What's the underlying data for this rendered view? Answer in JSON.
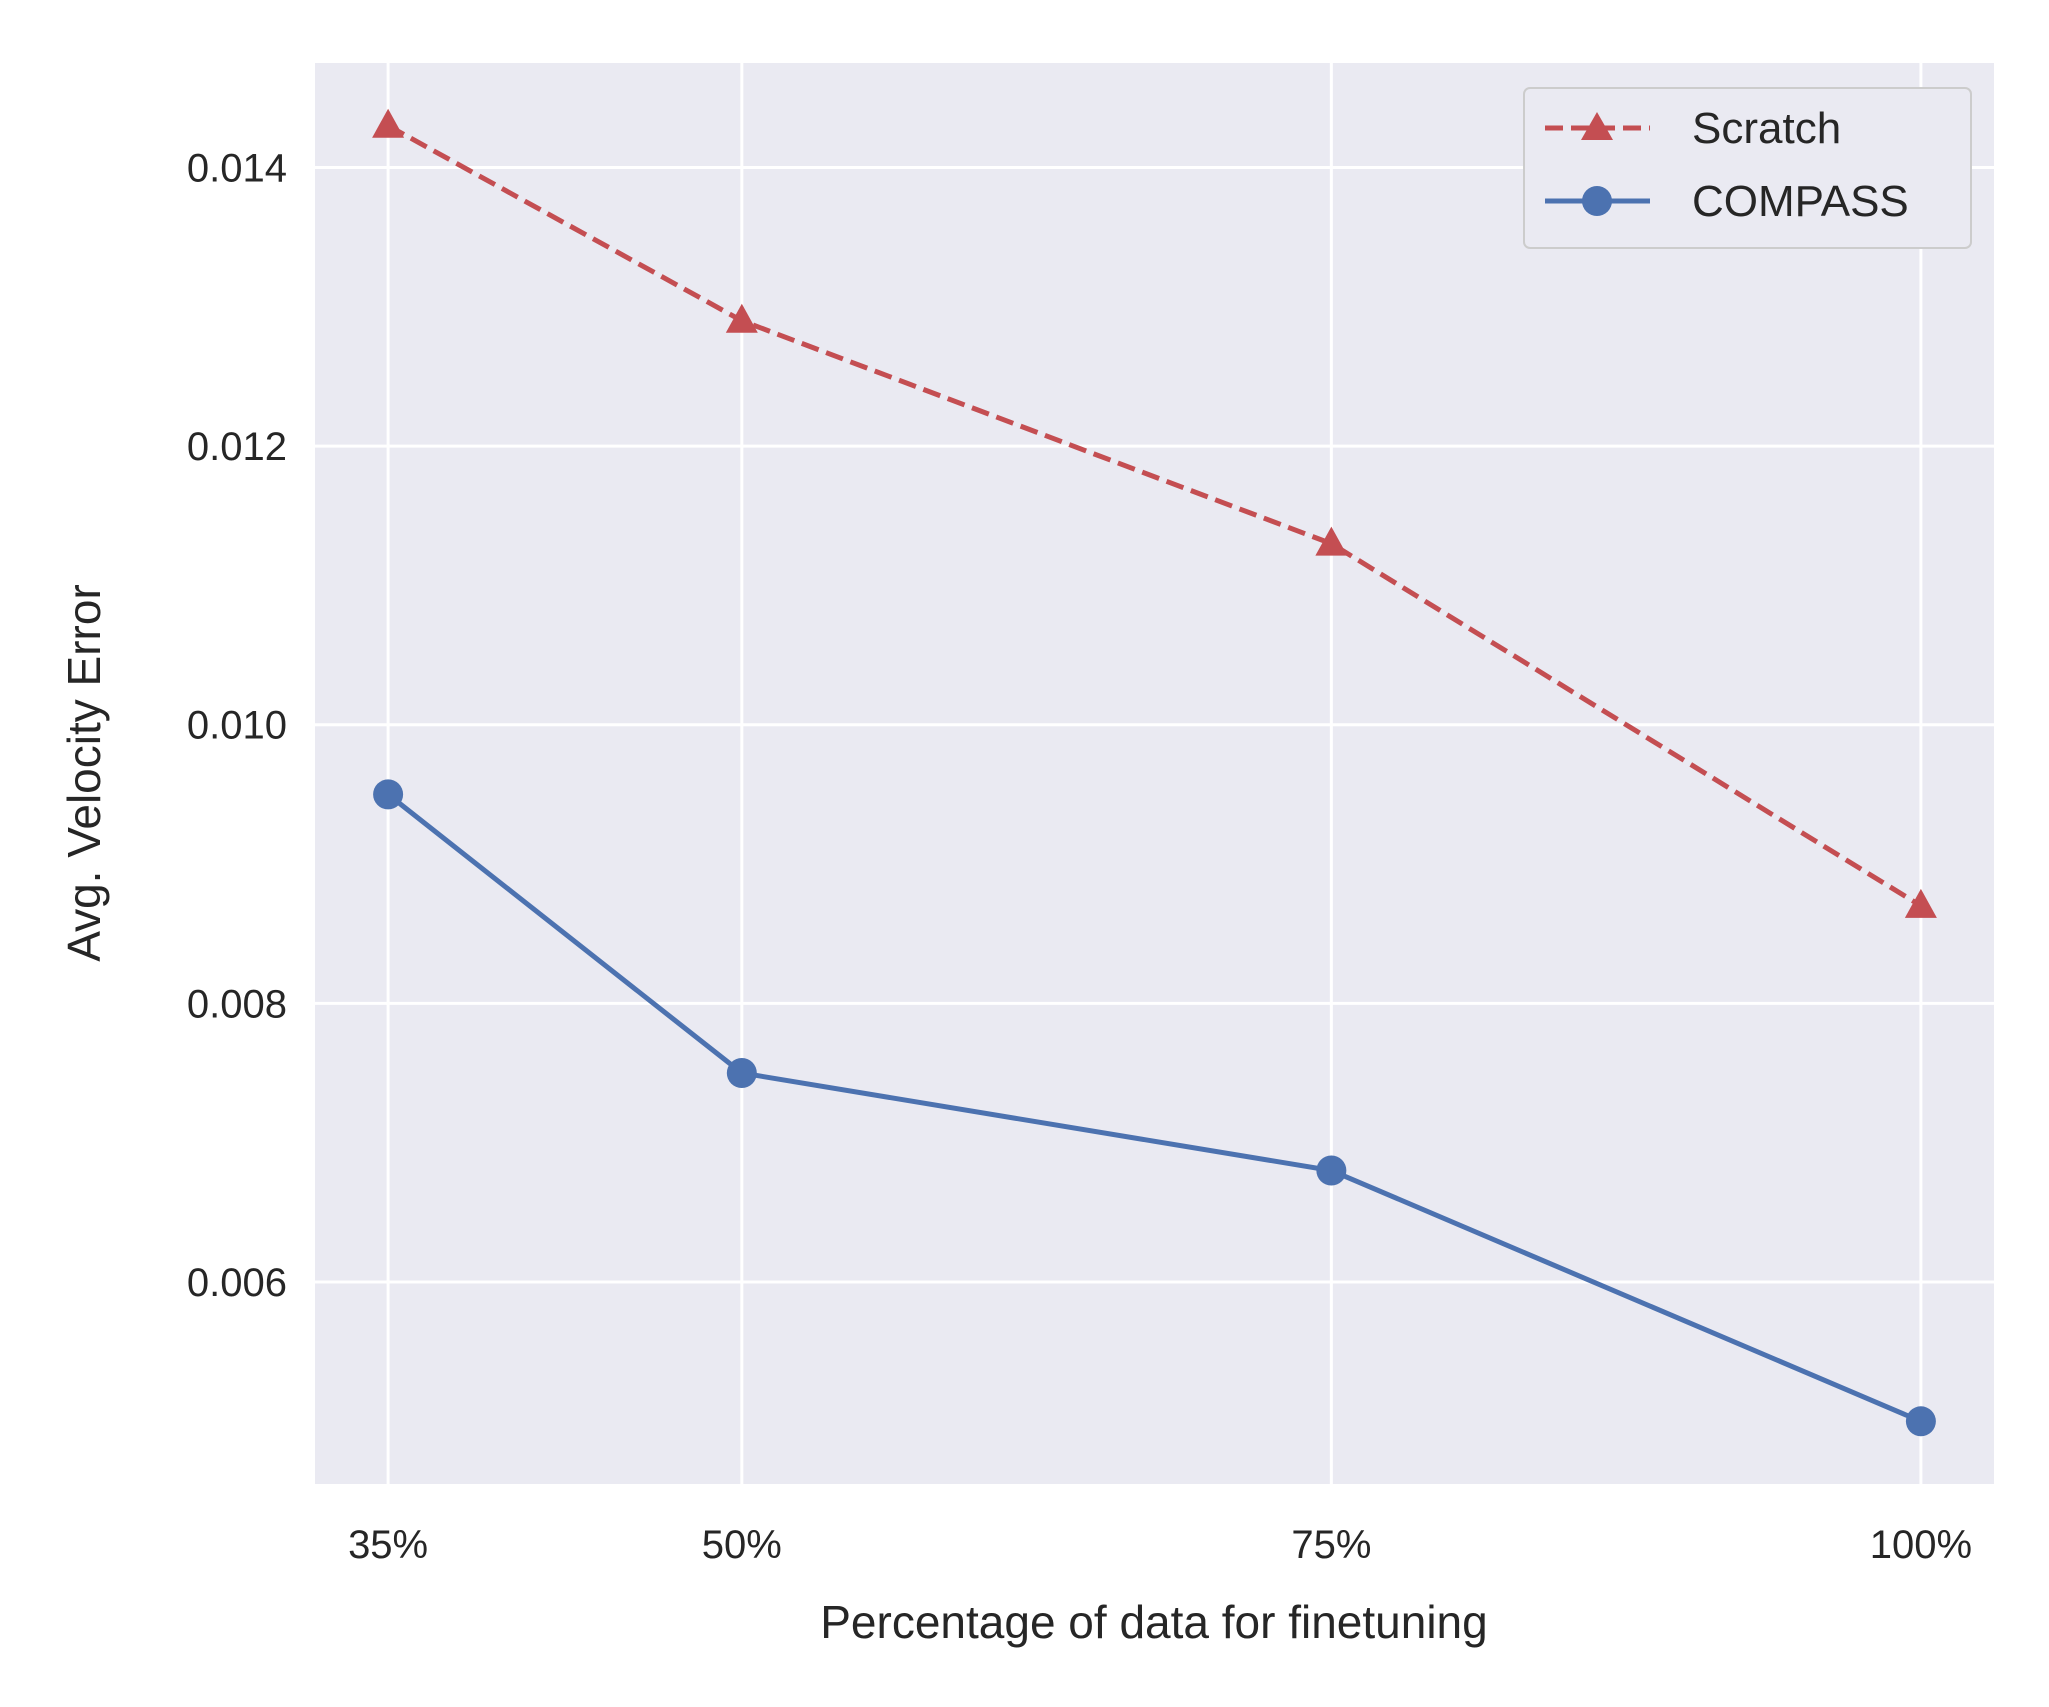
{
  "chart_data": {
    "type": "line",
    "title": "",
    "xlabel": "Percentage of data for finetuning",
    "ylabel": "Avg. Velocity Error",
    "x": [
      35,
      50,
      75,
      100
    ],
    "x_tick_labels": [
      "35%",
      "50%",
      "75%",
      "100%"
    ],
    "y_ticks": [
      0.006,
      0.008,
      0.01,
      0.012,
      0.014
    ],
    "y_tick_labels": [
      "0.006",
      "0.008",
      "0.010",
      "0.012",
      "0.014"
    ],
    "xlim": [
      31.9,
      103.1
    ],
    "ylim": [
      0.00455,
      0.01475
    ],
    "grid": true,
    "legend_position": "top-right",
    "series": [
      {
        "name": "Scratch",
        "values": [
          0.0143,
          0.0129,
          0.0113,
          0.0087
        ],
        "color": "#c44e52",
        "linestyle": "dashed",
        "marker": "triangle"
      },
      {
        "name": "COMPASS",
        "values": [
          0.0095,
          0.0075,
          0.0068,
          0.005
        ],
        "color": "#4c72b0",
        "linestyle": "solid",
        "marker": "circle"
      }
    ],
    "background": "#eaeaf2"
  }
}
